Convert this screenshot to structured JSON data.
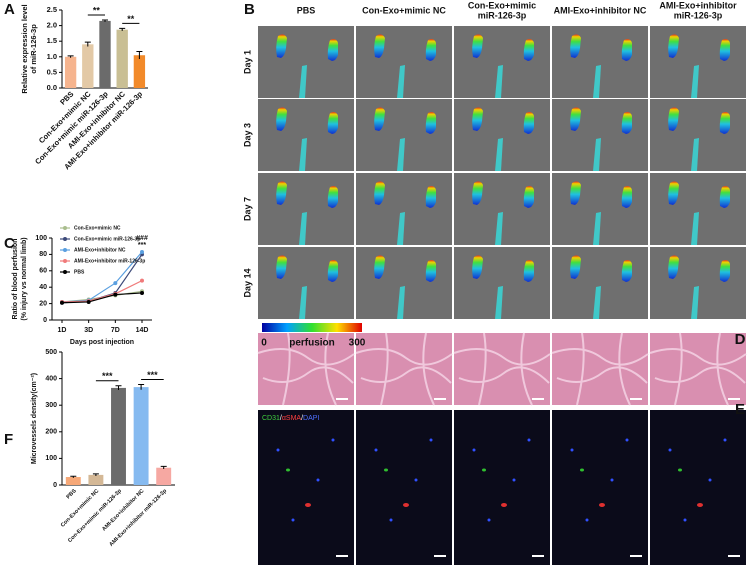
{
  "panel_labels": [
    "A",
    "B",
    "C",
    "D",
    "E",
    "F"
  ],
  "perfusion_grid": {
    "columns": [
      "PBS",
      "Con-Exo+mimic NC",
      [
        "Con-Exo+mimic",
        "miR-126-3p"
      ],
      "AMI-Exo+inhibitor NC",
      [
        "AMI-Exo+inhibitor",
        "miR-126-3p"
      ]
    ],
    "rows": [
      "Day 1",
      "Day 3",
      "Day 7",
      "Day 14"
    ],
    "colorbar": {
      "min": 0,
      "label": "perfusion",
      "max": 300
    }
  },
  "stain_label": {
    "cd31": "CD31",
    "sep1": "/",
    "asma": "αSMA",
    "sep2": "/",
    "dapi": "DAPI"
  },
  "chart_data": [
    {
      "type": "bar",
      "y_label": [
        "Relative expression level",
        "of miR-126-3p"
      ],
      "categories": [
        "PBS",
        "Con-Exo+mimic NC",
        "Con-Exo+mimic miR-126-3p",
        "AMI-Exo+inhibitor NC",
        "AMI-Exo+inhibitor miR-126-3p"
      ],
      "values": [
        1.0,
        1.4,
        2.15,
        1.87,
        1.05
      ],
      "errors": [
        0.03,
        0.07,
        0.03,
        0.04,
        0.12
      ],
      "colors": [
        "#f6b48e",
        "#e3c9a6",
        "#6b6b6b",
        "#c9bf94",
        "#f28a2a"
      ],
      "ylim": [
        0,
        2.5
      ],
      "yticks": [
        {
          "value": 0,
          "label": "0.0"
        },
        {
          "value": 0.5,
          "label": "0.5"
        },
        {
          "value": 1,
          "label": "1.0"
        },
        {
          "value": 1.5,
          "label": "1.5"
        },
        {
          "value": 2,
          "label": "2.0"
        },
        {
          "value": 2.5,
          "label": "2.5"
        }
      ],
      "significance": [
        "**",
        "**"
      ]
    },
    {
      "type": "line",
      "y_label": [
        "Ratio of blood perfusion",
        "(% injury vs normal limb)"
      ],
      "x_label": "Days post injection",
      "categories": [
        "1D",
        "3D",
        "7D",
        "14D"
      ],
      "series": [
        {
          "name": "Con-Exo+mimic NC",
          "color": "#a9bd8e",
          "values": [
            22,
            25,
            30,
            35
          ]
        },
        {
          "name": "Con-Exo+mimic miR-126-3p",
          "color": "#3d4a7a",
          "values": [
            21,
            23,
            33,
            80
          ]
        },
        {
          "name": "AMI-Exo+inhibitor NC",
          "color": "#5a9fe0",
          "values": [
            22,
            24,
            45,
            83
          ]
        },
        {
          "name": "AMI-Exo+inhibitor miR-126-3p",
          "color": "#f07a7a",
          "values": [
            22,
            23,
            32,
            48
          ]
        },
        {
          "name": "PBS",
          "color": "#000000",
          "values": [
            21,
            22,
            31,
            33
          ]
        }
      ],
      "ylim": [
        0,
        100
      ],
      "yticks": [
        0,
        20,
        40,
        60,
        80,
        100
      ],
      "annotations": [
        "###",
        "***"
      ]
    },
    {
      "type": "bar",
      "y_label": "Microvessels density(cm⁻²)",
      "categories": [
        "PBS",
        "Con-Exo+mimic NC",
        "Con-Exo+mimic miR-126-3p",
        "AMI-Exo+inhibitor NC",
        "AMI-Exo+inhibitor miR-126-3p"
      ],
      "values": [
        30,
        38,
        365,
        368,
        65
      ],
      "errors": [
        3,
        4,
        8,
        10,
        5
      ],
      "colors": [
        "#f6a878",
        "#d4b896",
        "#6b6b6b",
        "#86baf0",
        "#f6a8a2"
      ],
      "ylim": [
        0,
        500
      ],
      "yticks": [
        0,
        100,
        200,
        300,
        400,
        500
      ],
      "significance": [
        "***",
        "***"
      ]
    }
  ]
}
